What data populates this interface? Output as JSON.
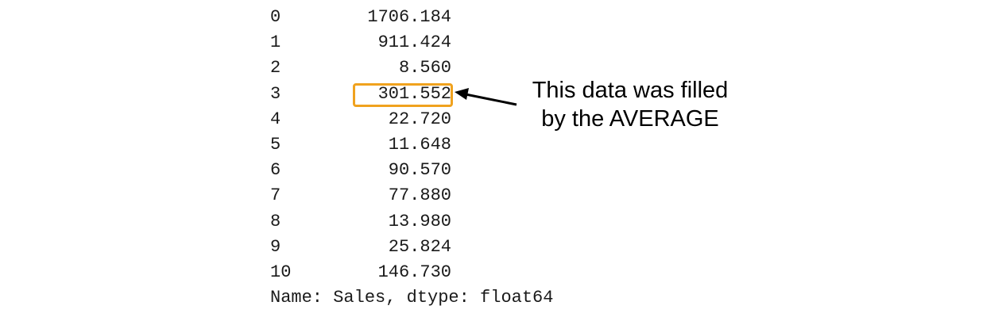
{
  "series": {
    "rows": [
      {
        "index": "0",
        "value": "1706.184"
      },
      {
        "index": "1",
        "value": "911.424"
      },
      {
        "index": "2",
        "value": "8.560"
      },
      {
        "index": "3",
        "value": "301.552"
      },
      {
        "index": "4",
        "value": "22.720"
      },
      {
        "index": "5",
        "value": "11.648"
      },
      {
        "index": "6",
        "value": "90.570"
      },
      {
        "index": "7",
        "value": "77.880"
      },
      {
        "index": "8",
        "value": "13.980"
      },
      {
        "index": "9",
        "value": "25.824"
      },
      {
        "index": "10",
        "value": "146.730"
      }
    ],
    "footer": "Name: Sales, dtype: float64"
  },
  "annotation": {
    "line1": "This data was filled",
    "line2": "by the AVERAGE",
    "highlighted_row": 3,
    "highlight_color": "#f0a21e"
  }
}
